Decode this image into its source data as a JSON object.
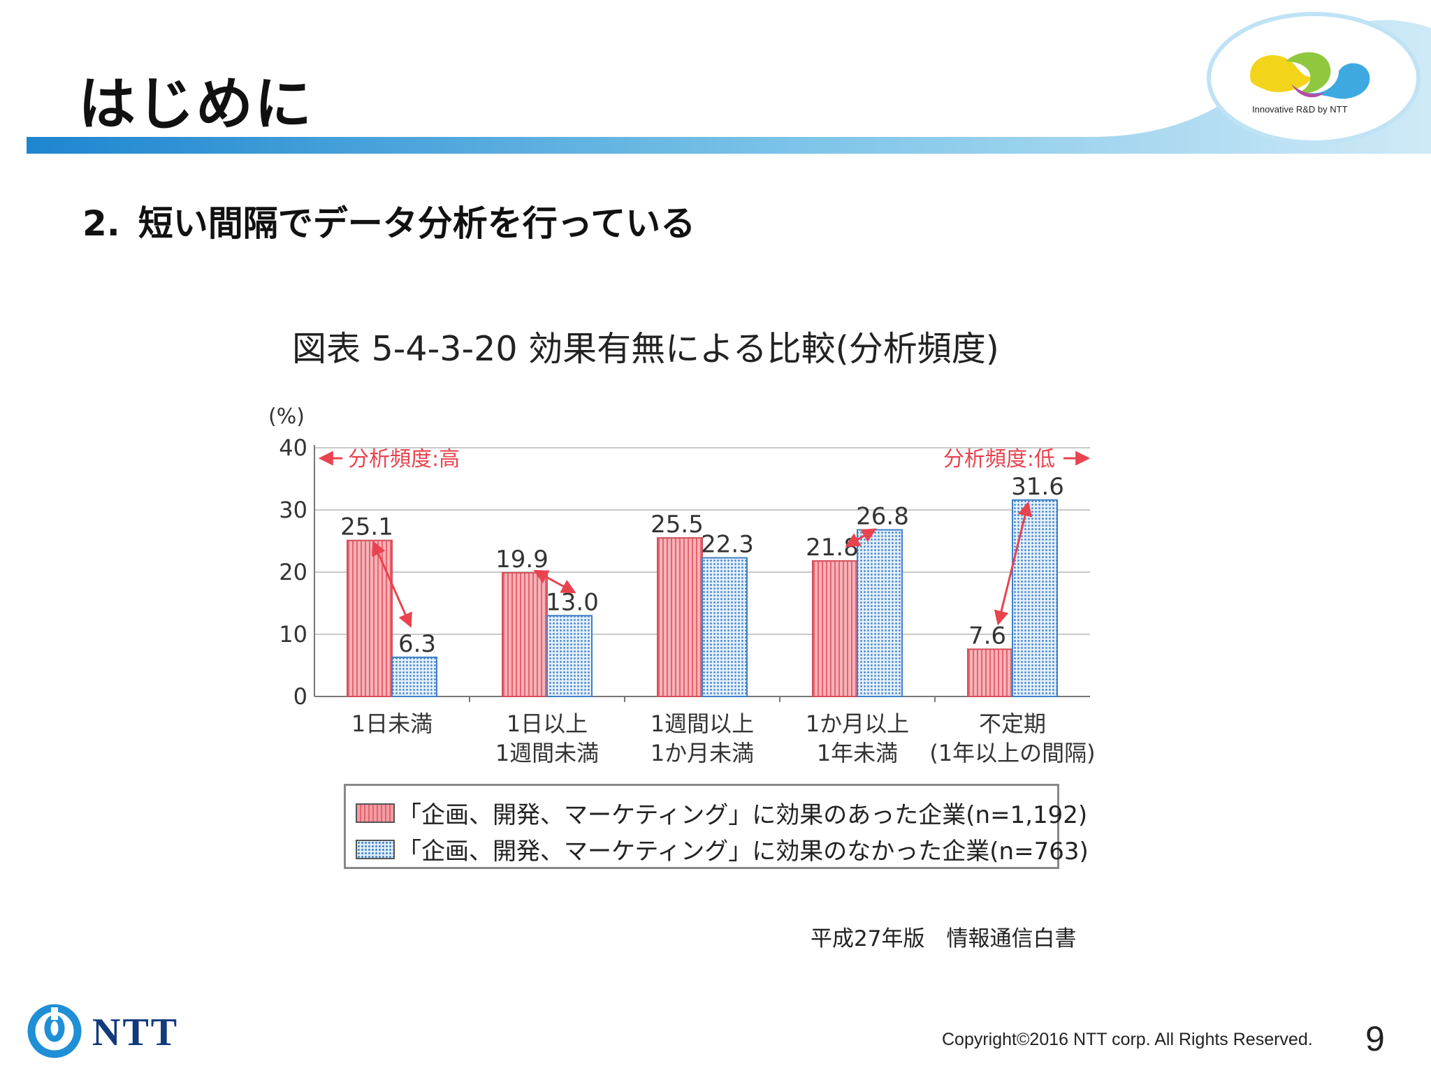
{
  "header": {
    "title": "はじめに",
    "badge_caption": "Innovative R&D by NTT"
  },
  "section": {
    "number": "2.",
    "heading": "短い間隔でデータ分析を行っている"
  },
  "figure": {
    "title": "図表 5-4-3-20 効果有無による比較(分析頻度)"
  },
  "chart_data": {
    "type": "bar",
    "y_unit": "(%)",
    "ylim": [
      0,
      40
    ],
    "yticks": [
      0,
      10,
      20,
      30,
      40
    ],
    "grid": true,
    "categories": [
      [
        "1日未満"
      ],
      [
        "1日以上",
        "1週間未満"
      ],
      [
        "1週間以上",
        "1か月未満"
      ],
      [
        "1か月以上",
        "1年未満"
      ],
      [
        "不定期",
        "(1年以上の間隔)"
      ]
    ],
    "series": [
      {
        "name": "「企画、開発、マーケティング」に効果のあった企業(n=1,192)",
        "values": [
          25.1,
          19.9,
          25.5,
          21.8,
          7.6
        ],
        "labels": [
          "25.1",
          "19.9",
          "25.5",
          "21.8",
          "7.6"
        ]
      },
      {
        "name": "「企画、開発、マーケティング」に効果のなかった企業(n=763)",
        "values": [
          6.3,
          13.0,
          22.3,
          26.8,
          31.6
        ],
        "labels": [
          "6.3",
          "13.0",
          "22.3",
          "26.8",
          "31.6"
        ]
      }
    ],
    "annotations": {
      "high": "分析頻度:高",
      "low": "分析頻度:低"
    }
  },
  "source": "平成27年版　情報通信白書",
  "footer": {
    "copyright": "Copyright©2016  NTT corp. All Rights Reserved.",
    "page_number": "9",
    "logo_text": "NTT"
  },
  "colors": {
    "accent_red": "#e8434f",
    "bar_red": "#f2a0a7",
    "bar_blue": "#3f7fc8",
    "header_blue": "#2b8fd1"
  }
}
